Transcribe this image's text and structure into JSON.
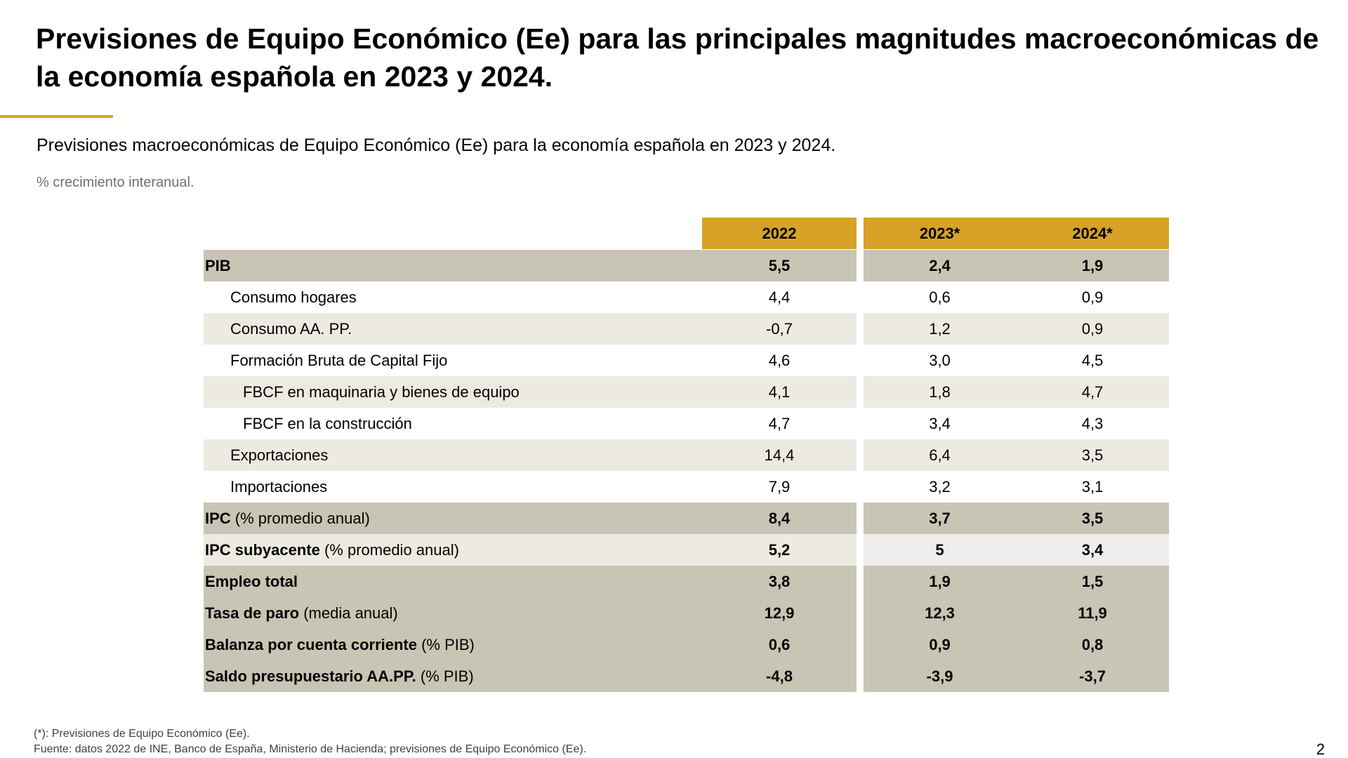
{
  "title": "Previsiones de Equipo Económico (Ee) para las principales magnitudes macroeconómicas de la economía española en 2023 y 2024.",
  "subtitle": "Previsiones macroeconómicas de Equipo Económico (Ee) para la economía española en 2023 y 2024.",
  "units_note": "% crecimiento interanual.",
  "colors": {
    "accent": "#d8a128",
    "header_bg": "#d8a128",
    "dark_row": "#c8c5b4",
    "light_row": "#edebe1",
    "pale_row": "#efeeec",
    "white": "#ffffff"
  },
  "table": {
    "columns": [
      "2022",
      "2023*",
      "2024*"
    ],
    "rows": [
      {
        "label": "PIB",
        "note": "",
        "values": [
          "5,5",
          "2,4",
          "1,9"
        ]
      },
      {
        "label": "Consumo hogares",
        "note": "",
        "values": [
          "4,4",
          "0,6",
          "0,9"
        ]
      },
      {
        "label": "Consumo AA. PP.",
        "note": "",
        "values": [
          "-0,7",
          "1,2",
          "0,9"
        ]
      },
      {
        "label": "Formación Bruta de Capital Fijo",
        "note": "",
        "values": [
          "4,6",
          "3,0",
          "4,5"
        ]
      },
      {
        "label": "FBCF en maquinaria y bienes de equipo",
        "note": "",
        "values": [
          "4,1",
          "1,8",
          "4,7"
        ]
      },
      {
        "label": "FBCF en la construcción",
        "note": "",
        "values": [
          "4,7",
          "3,4",
          "4,3"
        ]
      },
      {
        "label": "Exportaciones",
        "note": "",
        "values": [
          "14,4",
          "6,4",
          "3,5"
        ]
      },
      {
        "label": "Importaciones",
        "note": "",
        "values": [
          "7,9",
          "3,2",
          "3,1"
        ]
      },
      {
        "label": "IPC",
        "note": " (% promedio anual)",
        "values": [
          "8,4",
          "3,7",
          "3,5"
        ]
      },
      {
        "label": "IPC subyacente",
        "note": " (% promedio anual)",
        "values": [
          "5,2",
          "5",
          "3,4"
        ]
      },
      {
        "label": "Empleo total",
        "note": "",
        "values": [
          "3,8",
          "1,9",
          "1,5"
        ]
      },
      {
        "label": "Tasa de paro",
        "note": " (media anual)",
        "values": [
          "12,9",
          "12,3",
          "11,9"
        ]
      },
      {
        "label": "Balanza por cuenta corriente",
        "note": " (% PIB)",
        "values": [
          "0,6",
          "0,9",
          "0,8"
        ]
      },
      {
        "label": "Saldo presupuestario AA.PP.",
        "note": " (% PIB)",
        "values": [
          "-4,8",
          "-3,9",
          "-3,7"
        ]
      }
    ]
  },
  "footnotes": [
    "(*): Previsiones de Equipo Económico (Ee).",
    "Fuente: datos 2022 de INE, Banco de España, Ministerio de Hacienda; previsiones de Equipo Económico (Ee)."
  ],
  "page_number": "2"
}
